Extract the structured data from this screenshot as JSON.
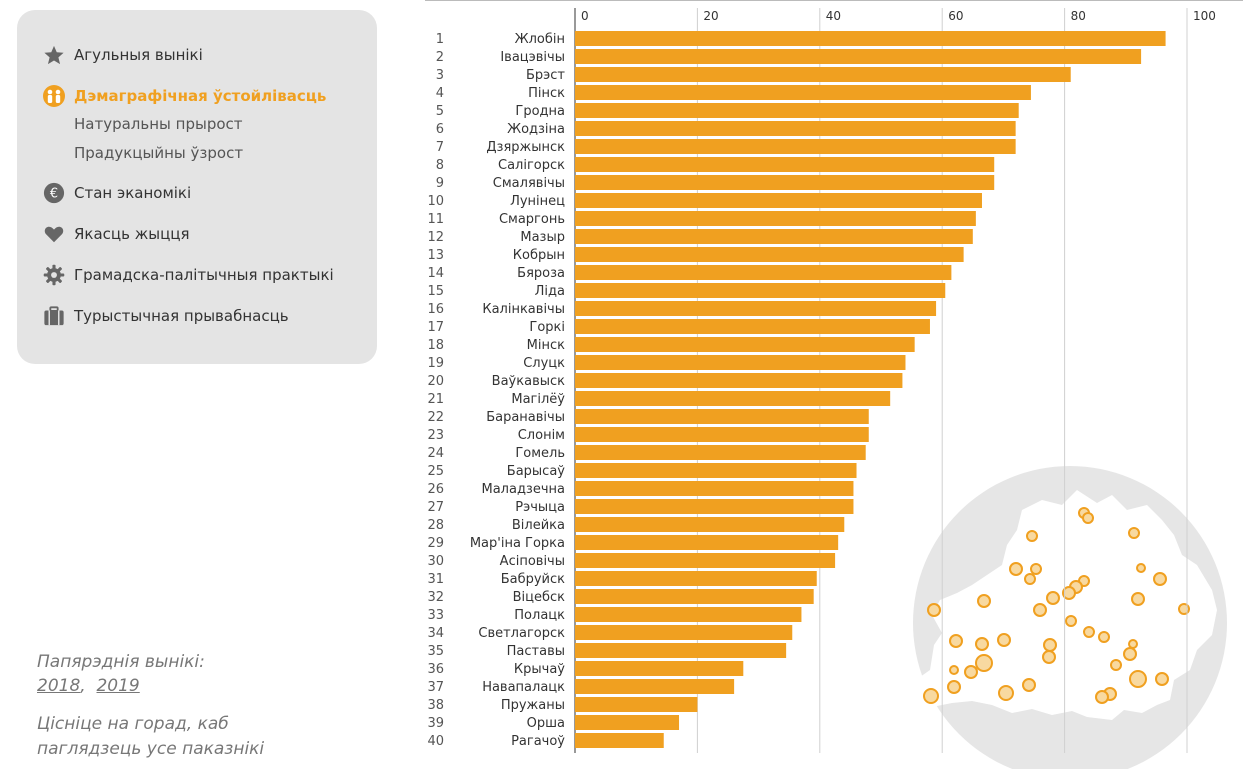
{
  "menu": {
    "items": [
      {
        "label": "Агульныя вынікі",
        "icon": "star-icon"
      },
      {
        "label": "Дэмаграфічная ўстойлівасць",
        "icon": "people-icon",
        "active": true,
        "sub": [
          "Натуральны прырост",
          "Прадукцыйны ўзрост"
        ]
      },
      {
        "label": "Стан эканомікі",
        "icon": "euro-icon"
      },
      {
        "label": "Якасць жыцця",
        "icon": "heart-icon"
      },
      {
        "label": "Грамадска-палітычныя практыкі",
        "icon": "gear-icon"
      },
      {
        "label": "Турыстычная прывабнасць",
        "icon": "suitcase-icon"
      }
    ]
  },
  "previous": {
    "label": "Папярэднія вынікі:",
    "years": [
      "2018",
      "2019"
    ]
  },
  "hint": "Цісніце на горад, каб паглядзець усе паказнікі",
  "colors": {
    "accent": "#f0a020",
    "menu_bg": "#e4e4e4",
    "map_bg": "#e6e6e6"
  },
  "chart_data": {
    "type": "bar",
    "orientation": "horizontal",
    "xlim": [
      0,
      100
    ],
    "ticks": [
      0,
      20,
      40,
      60,
      80,
      100
    ],
    "grid": true,
    "categories": [
      "Жлобін",
      "Івацэвічы",
      "Брэст",
      "Пінск",
      "Гродна",
      "Жодзіна",
      "Дзяржынск",
      "Салігорск",
      "Смалявічы",
      "Лунінец",
      "Смаргонь",
      "Мазыр",
      "Кобрын",
      "Бяроза",
      "Ліда",
      "Калінкавічы",
      "Горкі",
      "Мінск",
      "Слуцк",
      "Ваўкавыск",
      "Магілёў",
      "Баранавічы",
      "Слонім",
      "Гомель",
      "Барысаў",
      "Маладзечна",
      "Рэчыца",
      "Вілейка",
      "Мар'іна Горка",
      "Асіповічы",
      "Бабруйск",
      "Віцебск",
      "Полацк",
      "Светлагорск",
      "Паставы",
      "Крычаў",
      "Навапалацк",
      "Пружаны",
      "Орша",
      "Рагачоў"
    ],
    "values": [
      96.5,
      92.5,
      81,
      74.5,
      72.5,
      72,
      72,
      68.5,
      68.5,
      66.5,
      65.5,
      65,
      63.5,
      61.5,
      60.5,
      59,
      58,
      55.5,
      54,
      53.5,
      51.5,
      48,
      48,
      47.5,
      46,
      45.5,
      45.5,
      44,
      43,
      42.5,
      39.5,
      39,
      37,
      35.5,
      34.5,
      27.5,
      26,
      20,
      17,
      14.5
    ]
  }
}
